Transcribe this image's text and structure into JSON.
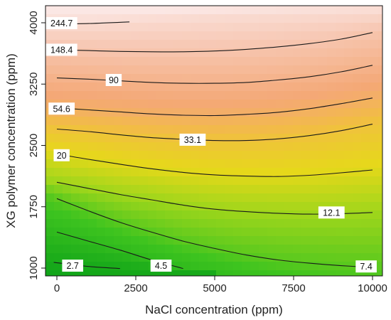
{
  "chart_data": {
    "type": "contour",
    "title": "",
    "xlabel": "NaCl concentration (ppm)",
    "ylabel": "XG polymer concentration (ppm)",
    "xlim": [
      0,
      10000
    ],
    "ylim": [
      1000,
      4000
    ],
    "x_ticks": [
      0,
      2500,
      5000,
      7500,
      10000
    ],
    "y_ticks": [
      1000,
      1750,
      2500,
      3250,
      4000
    ],
    "x_tick_labels": [
      "0",
      "2500",
      "5000",
      "7500",
      "10000"
    ],
    "y_tick_labels": [
      "1000",
      "1750",
      "2500",
      "3250",
      "4000"
    ],
    "colormap": [
      "#0aa018",
      "#3ec41f",
      "#9fd61b",
      "#e6d81a",
      "#f2bc45",
      "#f4a876",
      "#f7c8b4",
      "#fbe7e4"
    ],
    "grid": false,
    "contours": [
      {
        "label": "2.7",
        "value": 2.7,
        "label_at": [
          500,
          1030
        ],
        "points": [
          [
            -100,
            1070
          ],
          [
            1000,
            1020
          ],
          [
            2000,
            995
          ]
        ]
      },
      {
        "label": "4.5",
        "value": 4.5,
        "label_at": [
          3300,
          1030
        ],
        "points": [
          [
            0,
            1440
          ],
          [
            1000,
            1330
          ],
          [
            2000,
            1220
          ],
          [
            3000,
            1100
          ],
          [
            4000,
            995
          ]
        ]
      },
      {
        "label": "7.4",
        "value": 7.4,
        "label_at": [
          9800,
          1020
        ],
        "points": [
          [
            0,
            1850
          ],
          [
            1000,
            1700
          ],
          [
            2000,
            1560
          ],
          [
            3000,
            1440
          ],
          [
            4000,
            1330
          ],
          [
            5000,
            1240
          ],
          [
            6000,
            1160
          ],
          [
            7000,
            1100
          ],
          [
            8000,
            1060
          ],
          [
            9000,
            1030
          ],
          [
            10000,
            1010
          ]
        ]
      },
      {
        "label": "12.1",
        "value": 12.1,
        "label_at": [
          8700,
          1680
        ],
        "points": [
          [
            0,
            2050
          ],
          [
            1000,
            1975
          ],
          [
            2000,
            1900
          ],
          [
            3000,
            1835
          ],
          [
            4000,
            1770
          ],
          [
            5000,
            1720
          ],
          [
            6000,
            1690
          ],
          [
            7000,
            1670
          ],
          [
            8000,
            1660
          ],
          [
            9000,
            1665
          ],
          [
            10000,
            1680
          ]
        ]
      },
      {
        "label": "20",
        "value": 20,
        "label_at": [
          150,
          2380
        ],
        "points": [
          [
            0,
            2395
          ],
          [
            1000,
            2330
          ],
          [
            2000,
            2270
          ],
          [
            3000,
            2215
          ],
          [
            4000,
            2170
          ],
          [
            5000,
            2140
          ],
          [
            6000,
            2125
          ],
          [
            7000,
            2120
          ],
          [
            8000,
            2135
          ],
          [
            9000,
            2165
          ],
          [
            10000,
            2200
          ]
        ]
      },
      {
        "label": "33.1",
        "value": 33.1,
        "label_at": [
          4300,
          2570
        ],
        "points": [
          [
            0,
            2700
          ],
          [
            1000,
            2670
          ],
          [
            2000,
            2630
          ],
          [
            3000,
            2595
          ],
          [
            4000,
            2575
          ],
          [
            5000,
            2560
          ],
          [
            6000,
            2560
          ],
          [
            7000,
            2580
          ],
          [
            8000,
            2620
          ],
          [
            9000,
            2680
          ],
          [
            10000,
            2760
          ]
        ]
      },
      {
        "label": "54.6",
        "value": 54.6,
        "label_at": [
          150,
          2950
        ],
        "points": [
          [
            0,
            2960
          ],
          [
            1000,
            2935
          ],
          [
            2000,
            2910
          ],
          [
            3000,
            2885
          ],
          [
            4000,
            2870
          ],
          [
            5000,
            2865
          ],
          [
            6000,
            2880
          ],
          [
            7000,
            2905
          ],
          [
            8000,
            2950
          ],
          [
            9000,
            3010
          ],
          [
            10000,
            3080
          ]
        ]
      },
      {
        "label": "90",
        "value": 90,
        "label_at": [
          1800,
          3300
        ],
        "points": [
          [
            0,
            3325
          ],
          [
            1000,
            3310
          ],
          [
            2000,
            3290
          ],
          [
            3000,
            3270
          ],
          [
            4000,
            3260
          ],
          [
            5000,
            3260
          ],
          [
            6000,
            3270
          ],
          [
            7000,
            3300
          ],
          [
            8000,
            3340
          ],
          [
            9000,
            3400
          ],
          [
            10000,
            3480
          ]
        ]
      },
      {
        "label": "148.4",
        "value": 148.4,
        "label_at": [
          150,
          3670
        ],
        "points": [
          [
            0,
            3670
          ],
          [
            1000,
            3660
          ],
          [
            2000,
            3650
          ],
          [
            3000,
            3645
          ],
          [
            4000,
            3645
          ],
          [
            5000,
            3655
          ],
          [
            6000,
            3675
          ],
          [
            7000,
            3705
          ],
          [
            8000,
            3745
          ],
          [
            9000,
            3800
          ],
          [
            10000,
            3880
          ]
        ]
      },
      {
        "label": "244.7",
        "value": 244.7,
        "label_at": [
          150,
          3995
        ],
        "points": [
          [
            0,
            3985
          ],
          [
            1000,
            3990
          ],
          [
            2300,
            4010
          ]
        ]
      }
    ]
  }
}
